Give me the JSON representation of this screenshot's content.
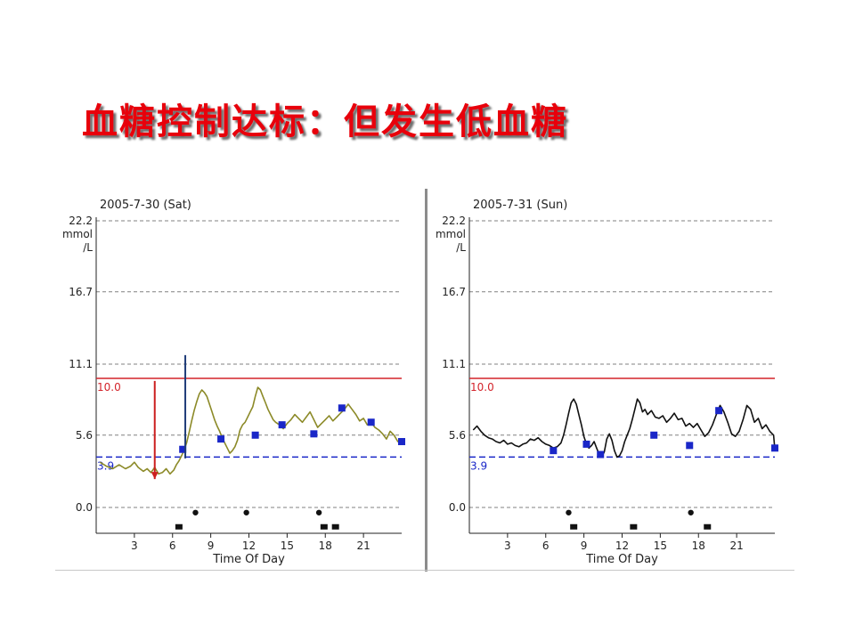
{
  "slide": {
    "title": "血糖控制达标：但发生低血糖"
  },
  "colors": {
    "title": "#e8000b",
    "upper_limit": "#d3232a",
    "lower_limit": "#1a27c8",
    "marker": "#1a27c8",
    "arrow_down": "#cc1f1f",
    "arrow_up": "#1f3c78"
  },
  "chart_data": [
    {
      "type": "line",
      "title": "2005-7-30 (Sat)",
      "xlabel": "Time Of Day",
      "ylabel": "mmol/L",
      "ylabel_lines": [
        "22.2",
        "mmol",
        "/L"
      ],
      "xlim": [
        0,
        24
      ],
      "ylim": [
        -2,
        22.2
      ],
      "x_ticks": [
        3,
        6,
        9,
        12,
        15,
        18,
        21
      ],
      "y_ticks": [
        0.0,
        5.6,
        11.1,
        16.7
      ],
      "y_tick_labels": [
        "0.0",
        "5.6",
        "11.1",
        "16.7"
      ],
      "grid": "horizontal-dashed",
      "line_color": "#8c8a28",
      "upper_limit": {
        "value": 10.0,
        "label": "10.0"
      },
      "lower_limit": {
        "value": 3.9,
        "label": "3.9"
      },
      "series": [
        {
          "x": [
            0.3,
            0.8,
            1.3,
            1.8,
            2.3,
            2.7,
            3.0,
            3.3,
            3.7,
            4.0,
            4.3,
            4.6,
            4.9,
            5.2,
            5.5,
            5.8,
            6.1,
            6.3,
            6.5,
            6.7,
            6.9,
            7.1,
            7.3,
            7.5,
            7.7,
            7.9,
            8.1,
            8.3,
            8.5,
            8.7,
            8.9,
            9.1,
            9.3,
            9.5,
            9.7,
            9.9,
            10.1,
            10.3,
            10.5,
            10.7,
            10.9,
            11.1,
            11.3,
            11.5,
            11.7,
            11.9,
            12.1,
            12.3,
            12.5,
            12.7,
            12.9,
            13.1,
            13.3,
            13.5,
            13.7,
            13.9,
            14.1,
            14.4,
            14.7,
            15.0,
            15.3,
            15.6,
            15.9,
            16.2,
            16.5,
            16.8,
            17.1,
            17.4,
            17.7,
            18.0,
            18.3,
            18.6,
            18.9,
            19.2,
            19.5,
            19.8,
            20.1,
            20.4,
            20.7,
            21.0,
            21.3,
            21.6,
            21.9,
            22.2,
            22.5,
            22.8,
            23.1,
            23.4,
            23.7,
            24.0
          ],
          "y": [
            3.5,
            3.2,
            3.0,
            3.3,
            3.0,
            3.2,
            3.5,
            3.1,
            2.8,
            3.0,
            2.7,
            3.1,
            2.6,
            2.7,
            3.0,
            2.6,
            2.9,
            3.3,
            3.6,
            4.0,
            4.4,
            5.0,
            5.8,
            6.7,
            7.5,
            8.2,
            8.8,
            9.1,
            8.9,
            8.6,
            8.0,
            7.4,
            6.8,
            6.3,
            5.9,
            5.4,
            5.0,
            4.6,
            4.2,
            4.4,
            4.7,
            5.2,
            6.0,
            6.4,
            6.6,
            7.0,
            7.4,
            7.8,
            8.6,
            9.3,
            9.1,
            8.6,
            8.1,
            7.6,
            7.2,
            6.8,
            6.6,
            6.4,
            6.1,
            6.5,
            6.8,
            7.2,
            6.9,
            6.6,
            7.0,
            7.4,
            6.8,
            6.2,
            6.5,
            6.8,
            7.1,
            6.7,
            7.0,
            7.3,
            7.6,
            8.0,
            7.6,
            7.2,
            6.7,
            6.9,
            6.4,
            6.6,
            6.2,
            6.0,
            5.7,
            5.3,
            5.9,
            5.6,
            5.1,
            5.3
          ]
        }
      ],
      "markers_square": [
        {
          "x": 6.8,
          "y": 4.5
        },
        {
          "x": 9.8,
          "y": 5.3
        },
        {
          "x": 12.5,
          "y": 5.6
        },
        {
          "x": 14.6,
          "y": 6.4
        },
        {
          "x": 17.1,
          "y": 5.7
        },
        {
          "x": 19.3,
          "y": 7.7
        },
        {
          "x": 21.6,
          "y": 6.6
        },
        {
          "x": 24.0,
          "y": 5.1
        }
      ],
      "event_dots_y": -0.4,
      "event_dots_x": [
        7.8,
        11.8,
        17.5
      ],
      "event_squares_y": -1.5,
      "event_squares_x": [
        6.5,
        17.9,
        18.8
      ],
      "arrows": [
        {
          "direction": "down",
          "x": 4.6,
          "from": 9.8,
          "to": 2.2,
          "color": "#cc1f1f"
        },
        {
          "direction": "up",
          "x": 7.0,
          "from": 3.8,
          "to": 11.8,
          "color": "#1f3c78"
        }
      ]
    },
    {
      "type": "line",
      "title": "2005-7-31 (Sun)",
      "xlabel": "Time Of Day",
      "ylabel": "mmol/L",
      "ylabel_lines": [
        "22.2",
        "mmol",
        "/L"
      ],
      "xlim": [
        0,
        24
      ],
      "ylim": [
        -2,
        22.2
      ],
      "x_ticks": [
        3,
        6,
        9,
        12,
        15,
        18,
        21
      ],
      "y_ticks": [
        0.0,
        5.6,
        11.1,
        16.7
      ],
      "y_tick_labels": [
        "0.0",
        "5.6",
        "11.1",
        "16.7"
      ],
      "grid": "horizontal-dashed",
      "line_color": "#111111",
      "upper_limit": {
        "value": 10.0,
        "label": "10.0"
      },
      "lower_limit": {
        "value": 3.9,
        "label": "3.9"
      },
      "series": [
        {
          "x": [
            0.3,
            0.6,
            0.9,
            1.2,
            1.5,
            1.8,
            2.1,
            2.4,
            2.7,
            3.0,
            3.3,
            3.6,
            3.9,
            4.2,
            4.5,
            4.8,
            5.1,
            5.4,
            5.7,
            6.0,
            6.3,
            6.6,
            6.9,
            7.2,
            7.4,
            7.6,
            7.8,
            8.0,
            8.2,
            8.4,
            8.6,
            8.8,
            9.0,
            9.2,
            9.4,
            9.6,
            9.8,
            10.0,
            10.2,
            10.4,
            10.6,
            10.8,
            11.0,
            11.2,
            11.4,
            11.6,
            11.8,
            12.0,
            12.2,
            12.4,
            12.6,
            12.8,
            13.0,
            13.2,
            13.4,
            13.6,
            13.8,
            14.0,
            14.3,
            14.6,
            14.9,
            15.2,
            15.5,
            15.8,
            16.1,
            16.4,
            16.7,
            17.0,
            17.3,
            17.6,
            17.9,
            18.2,
            18.5,
            18.8,
            19.1,
            19.4,
            19.7,
            20.0,
            20.3,
            20.6,
            20.9,
            21.2,
            21.5,
            21.8,
            22.1,
            22.4,
            22.7,
            23.0,
            23.3,
            23.6,
            23.9,
            24.0
          ],
          "y": [
            6.0,
            6.3,
            5.9,
            5.6,
            5.4,
            5.3,
            5.1,
            5.0,
            5.2,
            4.9,
            5.0,
            4.8,
            4.7,
            4.9,
            5.0,
            5.3,
            5.2,
            5.4,
            5.1,
            4.9,
            4.8,
            4.6,
            4.7,
            5.0,
            5.6,
            6.4,
            7.3,
            8.1,
            8.4,
            8.0,
            7.2,
            6.4,
            5.5,
            4.9,
            4.6,
            4.8,
            5.1,
            4.6,
            4.1,
            3.9,
            4.3,
            5.3,
            5.7,
            5.2,
            4.4,
            3.9,
            4.0,
            4.4,
            5.1,
            5.6,
            6.1,
            6.8,
            7.6,
            8.4,
            8.1,
            7.4,
            7.6,
            7.2,
            7.5,
            7.0,
            6.9,
            7.1,
            6.6,
            6.9,
            7.3,
            6.8,
            6.9,
            6.3,
            6.5,
            6.2,
            6.5,
            6.0,
            5.5,
            5.8,
            6.4,
            7.2,
            7.9,
            7.4,
            6.6,
            5.7,
            5.5,
            5.9,
            6.8,
            7.9,
            7.6,
            6.6,
            6.9,
            6.1,
            6.4,
            5.9,
            5.6,
            4.5
          ]
        }
      ],
      "markers_square": [
        {
          "x": 6.6,
          "y": 4.4
        },
        {
          "x": 9.2,
          "y": 4.9
        },
        {
          "x": 10.3,
          "y": 4.1
        },
        {
          "x": 14.5,
          "y": 5.6
        },
        {
          "x": 17.3,
          "y": 4.8
        },
        {
          "x": 19.6,
          "y": 7.5
        },
        {
          "x": 24.0,
          "y": 4.6
        }
      ],
      "event_dots_y": -0.4,
      "event_dots_x": [
        7.8,
        17.4
      ],
      "event_squares_y": -1.5,
      "event_squares_x": [
        8.2,
        12.9,
        18.7
      ],
      "arrows": []
    }
  ]
}
